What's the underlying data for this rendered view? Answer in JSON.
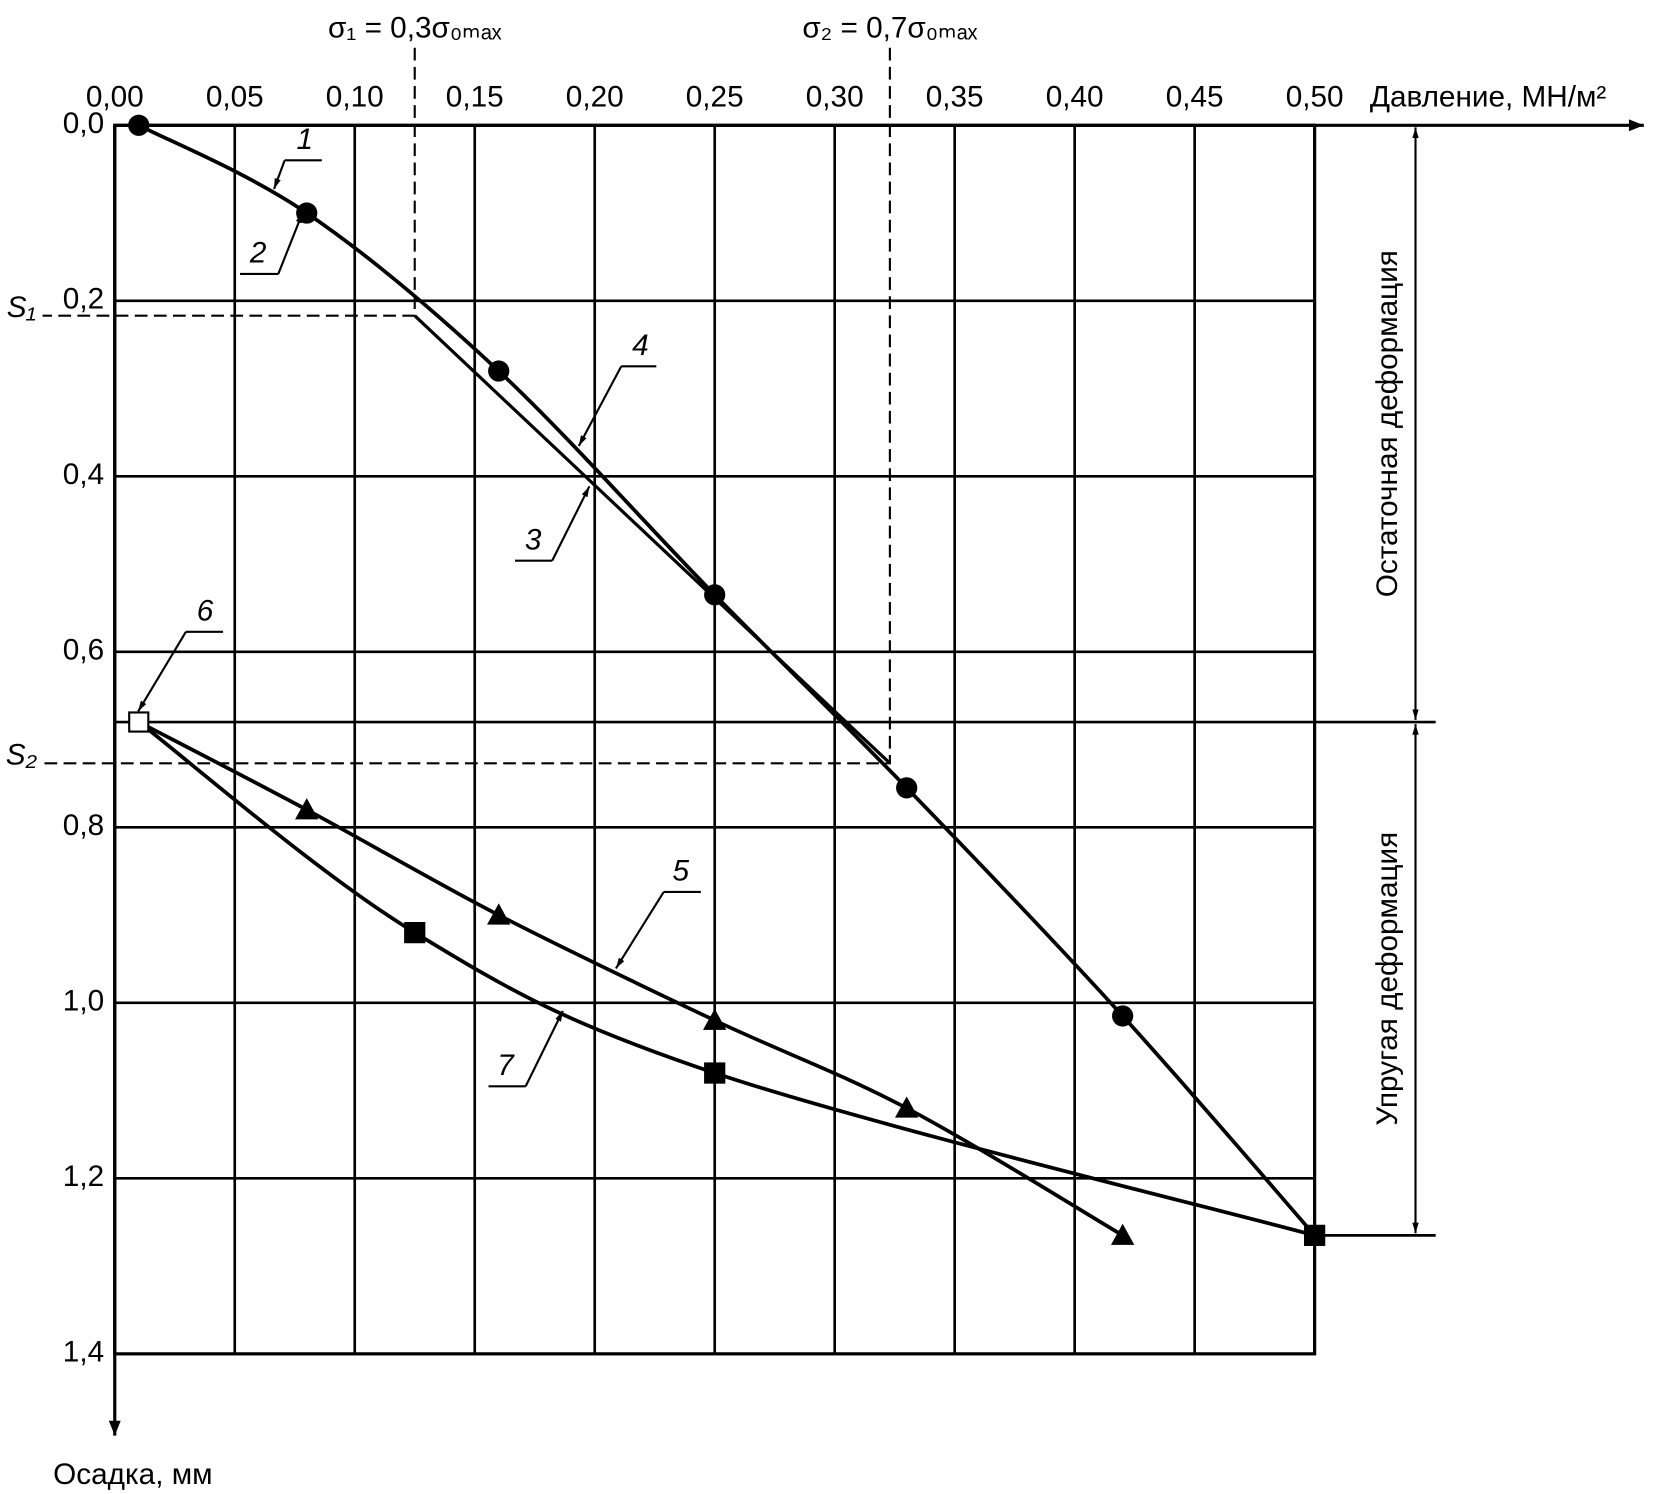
{
  "chart_data": {
    "type": "line",
    "x_label": "Давление, МН/м²",
    "y_label": "Осадка, мм",
    "xlim": [
      0,
      0.5
    ],
    "ylim": [
      0,
      1.4
    ],
    "y_inverted": true,
    "grid": true,
    "xticks": [
      {
        "value": 0,
        "label": "0,00"
      },
      {
        "value": 0.05,
        "label": "0,05"
      },
      {
        "value": 0.1,
        "label": "0,10"
      },
      {
        "value": 0.15,
        "label": "0,15"
      },
      {
        "value": 0.2,
        "label": "0,20"
      },
      {
        "value": 0.25,
        "label": "0,25"
      },
      {
        "value": 0.3,
        "label": "0,30"
      },
      {
        "value": 0.35,
        "label": "0,35"
      },
      {
        "value": 0.4,
        "label": "0,40"
      },
      {
        "value": 0.45,
        "label": "0,45"
      },
      {
        "value": 0.5,
        "label": "0,50"
      }
    ],
    "yticks": [
      {
        "value": 0,
        "label": "0,0"
      },
      {
        "value": 0.2,
        "label": "0,2"
      },
      {
        "value": 0.4,
        "label": "0,4"
      },
      {
        "value": 0.6,
        "label": "0,6"
      },
      {
        "value": 0.8,
        "label": "0,8"
      },
      {
        "value": 1.0,
        "label": "1,0"
      },
      {
        "value": 1.2,
        "label": "1,2"
      },
      {
        "value": 1.4,
        "label": "1,4"
      }
    ],
    "series": [
      {
        "color": "#000000",
        "marker": "circle",
        "x": [
          0.01,
          0.08,
          0.16,
          0.25,
          0.33,
          0.42,
          0.5
        ],
        "values": [
          0,
          0.1,
          0.28,
          0.535,
          0.755,
          1.015,
          1.265
        ]
      },
      {
        "color": "#000000",
        "marker": "triangle",
        "first_marker": "none",
        "x": [
          0.01,
          0.08,
          0.16,
          0.25,
          0.33,
          0.42
        ],
        "values": [
          0.68,
          0.78,
          0.9,
          1.02,
          1.12,
          1.265
        ]
      },
      {
        "color": "#000000",
        "marker": "square",
        "first_marker": "open-square",
        "x": [
          0.01,
          0.125,
          0.25,
          0.5
        ],
        "values": [
          0.68,
          0.92,
          1.08,
          1.265
        ]
      }
    ],
    "reference_lines": [
      {
        "label": "σ₁ = 0,3σ₀ₘₐₓ",
        "y_label": "S₁",
        "x": 0.125,
        "y": 0.217
      },
      {
        "label": "σ₂ = 0,7σ₀ₘₐₓ",
        "y_label": "S₂",
        "x": 0.323,
        "y": 0.727
      }
    ],
    "zones": [
      {
        "label": "Остаточная деформация",
        "from": 0,
        "to": 0.68
      },
      {
        "label": "Упругая деформация",
        "from": 0.68,
        "to": 1.265
      }
    ],
    "annotations": [
      "1",
      "2",
      "3",
      "4",
      "5",
      "6",
      "7"
    ]
  }
}
